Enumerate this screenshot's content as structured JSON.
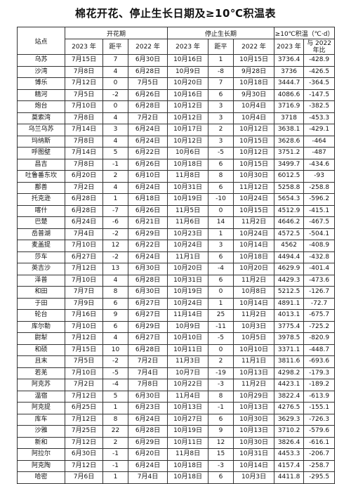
{
  "title": "棉花开花、停止生长日期及≥10℃积温表",
  "headers": {
    "station": "站点",
    "flowering": "开花期",
    "stop_growth": "停止生长期",
    "accum_temp": "≥10℃积温（℃·d）",
    "year_2023": "2023 年",
    "anomaly": "距平",
    "year_2022": "2022 年",
    "vs_2022": "与 2022 年比"
  },
  "rows": [
    [
      "乌苏",
      "7月15日",
      "7",
      "6月30日",
      "10月16日",
      "1",
      "10月15日",
      "3736.4",
      "-428.9"
    ],
    [
      "沙湾",
      "7月8日",
      "4",
      "6月28日",
      "10月9日",
      "-8",
      "9月28日",
      "3736",
      "-426.5"
    ],
    [
      "博乐",
      "7月12日",
      "0",
      "7月5日",
      "10月20日",
      "7",
      "10月18日",
      "3444.7",
      "-364.5"
    ],
    [
      "精河",
      "7月5日",
      "-2",
      "6月26日",
      "10月16日",
      "6",
      "9月30日",
      "4086.6",
      "-147.5"
    ],
    [
      "炮台",
      "7月10日",
      "0",
      "6月28日",
      "10月12日",
      "3",
      "10月4日",
      "3716.9",
      "-382.5"
    ],
    [
      "莫索湾",
      "7月8日",
      "4",
      "7月2日",
      "10月12日",
      "3",
      "10月4日",
      "3718",
      "-453.3"
    ],
    [
      "乌兰乌苏",
      "7月14日",
      "3",
      "6月24日",
      "10月17日",
      "2",
      "10月12日",
      "3638.1",
      "-429.1"
    ],
    [
      "玛纳斯",
      "7月8日",
      "4",
      "6月24日",
      "10月12日",
      "3",
      "10月15日",
      "3628.6",
      "-464"
    ],
    [
      "呼图壁",
      "7月14日",
      "5",
      "6月22日",
      "10月6日",
      "-5",
      "10月12日",
      "3751.2",
      "-487"
    ],
    [
      "昌吉",
      "7月8日",
      "-1",
      "6月26日",
      "10月18日",
      "6",
      "10月15日",
      "3499.7",
      "-434.6"
    ],
    [
      "吐鲁番东坎",
      "6月20日",
      "2",
      "6月10日",
      "11月8日",
      "8",
      "10月30日",
      "6012.5",
      "-93"
    ],
    [
      "鄯善",
      "7月2日",
      "4",
      "6月24日",
      "10月31日",
      "6",
      "11月12日",
      "5258.8",
      "-258.8"
    ],
    [
      "托克逊",
      "6月28日",
      "1",
      "6月18日",
      "10月19日",
      "-10",
      "10月24日",
      "5654.3",
      "-596.2"
    ],
    [
      "喀什",
      "6月28日",
      "-7",
      "6月26日",
      "11月5日",
      "0",
      "10月15日",
      "4512.9",
      "-415.1"
    ],
    [
      "巴楚",
      "6月24日",
      "-6",
      "6月21日",
      "11月6日",
      "14",
      "11月2日",
      "4646.2",
      "-467.5"
    ],
    [
      "岳普湖",
      "7月4日",
      "-2",
      "6月29日",
      "10月23日",
      "1",
      "10月24日",
      "4572.5",
      "-504.1"
    ],
    [
      "麦盖提",
      "7月10日",
      "12",
      "6月22日",
      "10月24日",
      "3",
      "10月14日",
      "4562",
      "-408.9"
    ],
    [
      "莎车",
      "6月27日",
      "-2",
      "6月24日",
      "11月1日",
      "6",
      "10月18日",
      "4494.4",
      "-432.8"
    ],
    [
      "英吉沙",
      "7月12日",
      "13",
      "6月30日",
      "10月20日",
      "-4",
      "10月20日",
      "4629.9",
      "-401.4"
    ],
    [
      "泽普",
      "7月10日",
      "4",
      "6月28日",
      "10月31日",
      "6",
      "11月2日",
      "4429.3",
      "-473.6"
    ],
    [
      "和田",
      "7月7日",
      "8",
      "6月30日",
      "10月19日",
      "0",
      "10月8日",
      "5212.5",
      "-126.7"
    ],
    [
      "于田",
      "7月9日",
      "6",
      "6月27日",
      "10月24日",
      "1",
      "10月14日",
      "4891.1",
      "-72.7"
    ],
    [
      "轮台",
      "7月16日",
      "9",
      "6月27日",
      "11月14日",
      "25",
      "11月2日",
      "4013.1",
      "-675.7"
    ],
    [
      "库尔勒",
      "7月10日",
      "6",
      "6月29日",
      "10月9日",
      "-11",
      "10月3日",
      "3775.4",
      "-725.2"
    ],
    [
      "尉犁",
      "7月12日",
      "4",
      "6月27日",
      "10月10日",
      "-5",
      "10月5日",
      "3978.5",
      "-820.9"
    ],
    [
      "和硕",
      "7月15日",
      "10",
      "6月28日",
      "10月11日",
      "0",
      "10月10日",
      "3371.1",
      "-448.7"
    ],
    [
      "且末",
      "7月5日",
      "-2",
      "7月2日",
      "11月3日",
      "2",
      "11月1日",
      "3811.6",
      "-693.6"
    ],
    [
      "若羌",
      "7月10日",
      "-5",
      "7月4日",
      "10月7日",
      "-19",
      "10月13日",
      "4298.2",
      "-179.3"
    ],
    [
      "阿克苏",
      "7月2日",
      "-4",
      "7月8日",
      "10月22日",
      "-3",
      "11月2日",
      "4423.1",
      "-189.2"
    ],
    [
      "温宿",
      "7月12日",
      "5",
      "6月30日",
      "11月4日",
      "8",
      "10月29日",
      "3822.4",
      "-613.9"
    ],
    [
      "阿克提",
      "6月25日",
      "1",
      "6月23日",
      "10月13日",
      "-1",
      "10月13日",
      "4276.5",
      "-155.1"
    ],
    [
      "库车",
      "7月12日",
      "8",
      "6月24日",
      "10月27日",
      "6",
      "10月30日",
      "3629.3",
      "-726.3"
    ],
    [
      "沙雅",
      "7月25日",
      "22",
      "6月28日",
      "10月19日",
      "9",
      "10月13日",
      "3710.2",
      "-579.6"
    ],
    [
      "新和",
      "7月12日",
      "2",
      "6月29日",
      "10月11日",
      "12",
      "10月30日",
      "3826.4",
      "-616.1"
    ],
    [
      "阿拉尔",
      "6月30日",
      "-1",
      "6月20日",
      "11月8日",
      "15",
      "10月31日",
      "4453.3",
      "-206.7"
    ],
    [
      "阿克陶",
      "7月12日",
      "-1",
      "6月24日",
      "10月18日",
      "-3",
      "10月14日",
      "4157.4",
      "-258.7"
    ],
    [
      "哈密",
      "7月6日",
      "1",
      "7月4日",
      "10月18日",
      "6",
      "10月3日",
      "4411.8",
      "-295.5"
    ]
  ]
}
